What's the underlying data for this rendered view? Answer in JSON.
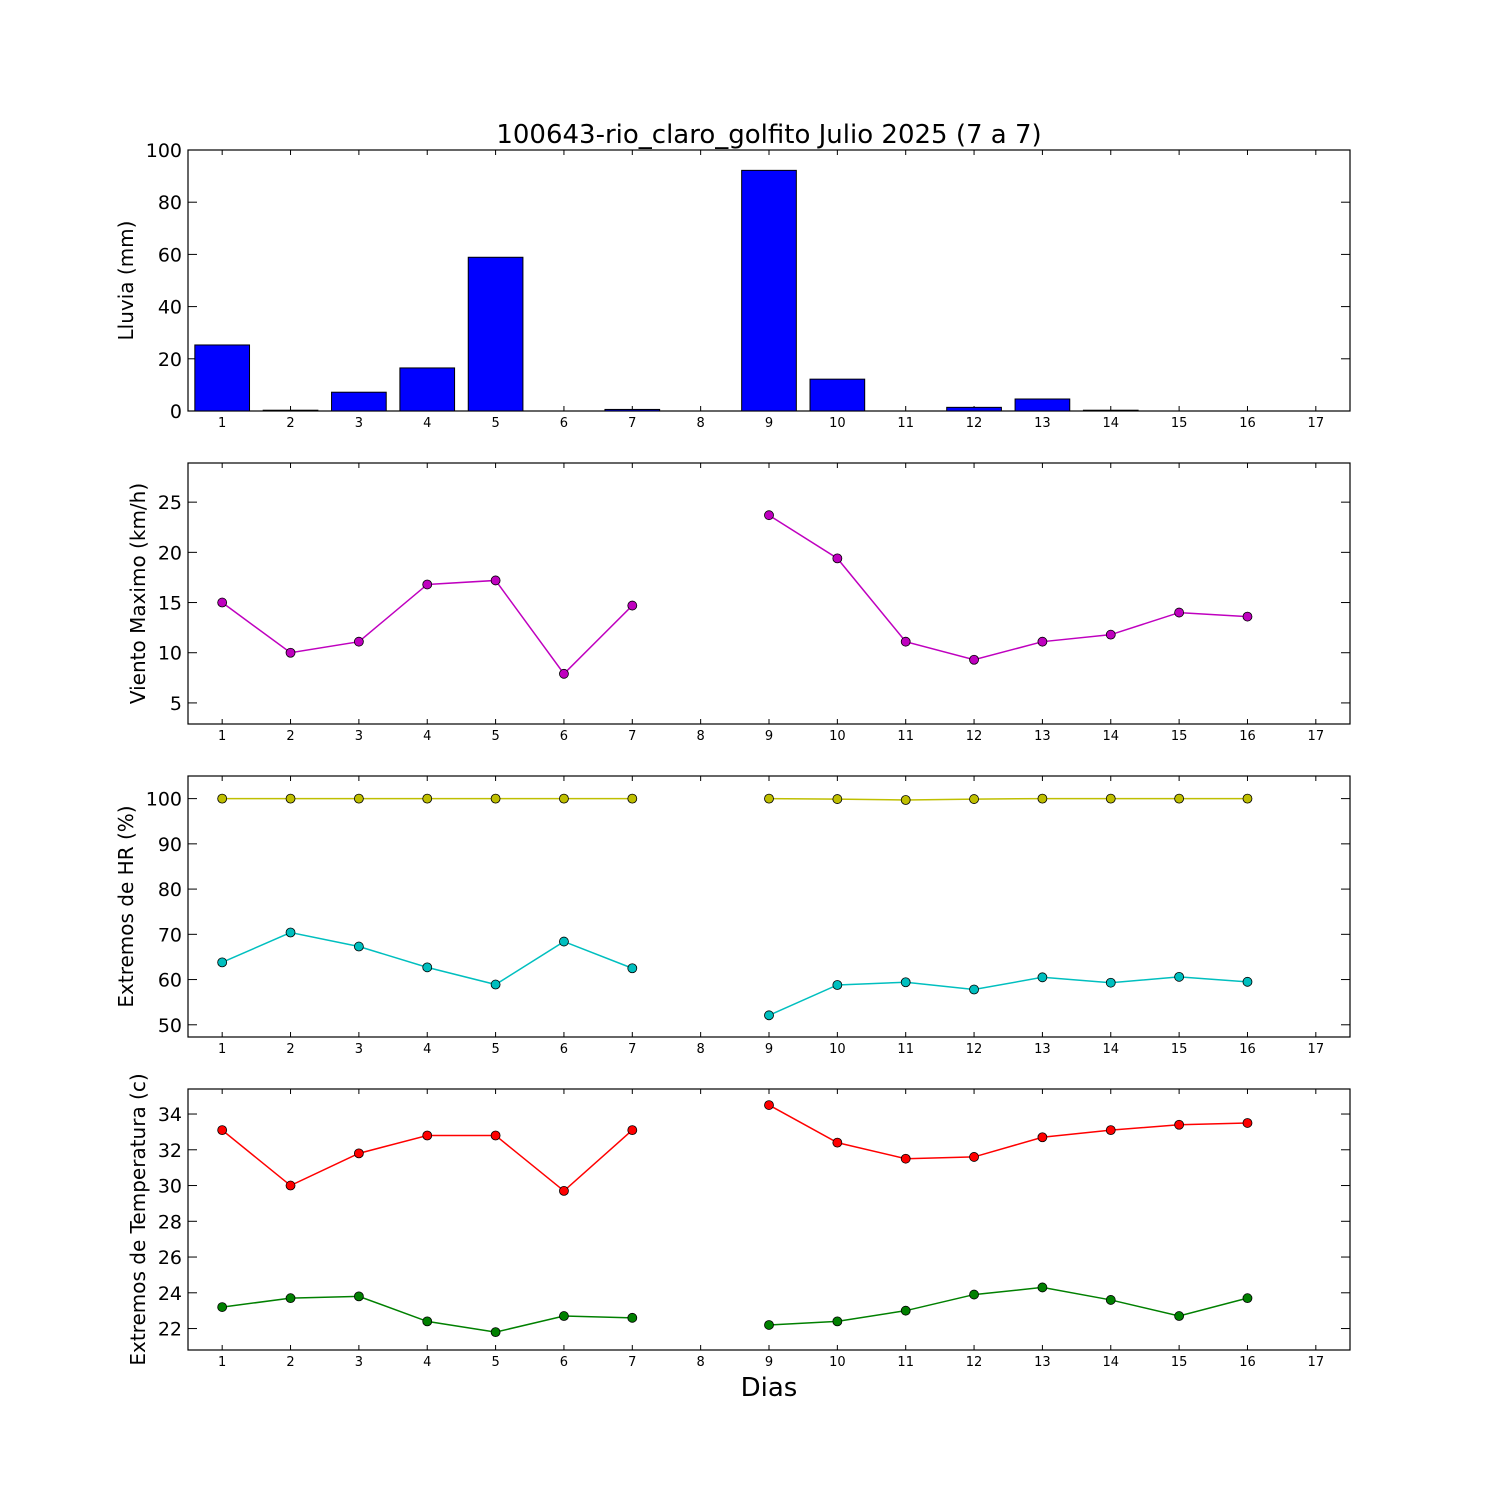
{
  "title": "100643-rio_claro_golfito Julio 2025  (7 a 7)",
  "xlabel": "Dias",
  "x_ticks": [
    "1",
    "2",
    "3",
    "4",
    "5",
    "6",
    "7",
    "8",
    "9",
    "10",
    "11",
    "12",
    "13",
    "14",
    "15",
    "16",
    "17"
  ],
  "colors": {
    "rain": "#0000ff",
    "wind": "#bf00bf",
    "hr_max": "#bfbf00",
    "hr_min": "#00bfbf",
    "temp_max": "#ff0000",
    "temp_min": "#008000"
  },
  "chart_data": [
    {
      "type": "bar",
      "ylabel": "Lluvia (mm)",
      "x": [
        1,
        2,
        3,
        4,
        5,
        6,
        7,
        8,
        9,
        10,
        11,
        12,
        13,
        14,
        15,
        16,
        17
      ],
      "ylim": [
        0,
        100
      ],
      "xlim": [
        0.5,
        17.5
      ],
      "yticks": [
        0,
        20,
        40,
        60,
        80,
        100
      ],
      "grid": false,
      "series": [
        {
          "values": [
            25.3,
            0.3,
            7.2,
            16.5,
            58.9,
            0,
            0.6,
            null,
            92.2,
            12.2,
            0,
            1.4,
            4.6,
            0.3,
            0,
            0,
            null
          ]
        }
      ]
    },
    {
      "type": "line",
      "ylabel": "Viento Maximo (km/h)",
      "x": [
        1,
        2,
        3,
        4,
        5,
        6,
        7,
        8,
        9,
        10,
        11,
        12,
        13,
        14,
        15,
        16,
        17
      ],
      "ylim": [
        2.9,
        28.9
      ],
      "xlim": [
        0.5,
        17.5
      ],
      "yticks": [
        5,
        10,
        15,
        20,
        25
      ],
      "grid": false,
      "series": [
        {
          "values": [
            15.0,
            10.0,
            11.1,
            16.8,
            17.2,
            7.9,
            14.7,
            null,
            23.7,
            19.4,
            11.1,
            9.3,
            11.1,
            11.8,
            14.0,
            13.6,
            null
          ]
        }
      ]
    },
    {
      "type": "line",
      "ylabel": "Extremos de HR (%)",
      "x": [
        1,
        2,
        3,
        4,
        5,
        6,
        7,
        8,
        9,
        10,
        11,
        12,
        13,
        14,
        15,
        16,
        17
      ],
      "ylim": [
        47.3,
        105.0
      ],
      "xlim": [
        0.5,
        17.5
      ],
      "yticks": [
        50,
        60,
        70,
        80,
        90,
        100
      ],
      "grid": false,
      "series": [
        {
          "values": [
            100,
            100,
            100,
            100,
            100,
            100,
            100,
            null,
            100,
            99.9,
            99.7,
            99.9,
            100,
            100,
            100,
            100,
            null
          ]
        },
        {
          "values": [
            63.8,
            70.4,
            67.3,
            62.7,
            58.9,
            68.4,
            62.5,
            null,
            52.1,
            58.8,
            59.4,
            57.8,
            60.5,
            59.3,
            60.6,
            59.5,
            null
          ]
        }
      ]
    },
    {
      "type": "line",
      "ylabel": "Extremos de Temperatura (c)",
      "x": [
        1,
        2,
        3,
        4,
        5,
        6,
        7,
        8,
        9,
        10,
        11,
        12,
        13,
        14,
        15,
        16,
        17
      ],
      "ylim": [
        20.8,
        35.4
      ],
      "xlim": [
        0.5,
        17.5
      ],
      "yticks": [
        22,
        24,
        26,
        28,
        30,
        32,
        34
      ],
      "grid": false,
      "series": [
        {
          "values": [
            33.1,
            30.0,
            31.8,
            32.8,
            32.8,
            29.7,
            33.1,
            null,
            34.5,
            32.4,
            31.5,
            31.6,
            32.7,
            33.1,
            33.4,
            33.5,
            null
          ]
        },
        {
          "values": [
            23.2,
            23.7,
            23.8,
            22.4,
            21.8,
            22.7,
            22.6,
            null,
            22.2,
            22.4,
            23.0,
            23.9,
            24.3,
            23.6,
            22.7,
            23.7,
            null
          ]
        }
      ]
    }
  ]
}
